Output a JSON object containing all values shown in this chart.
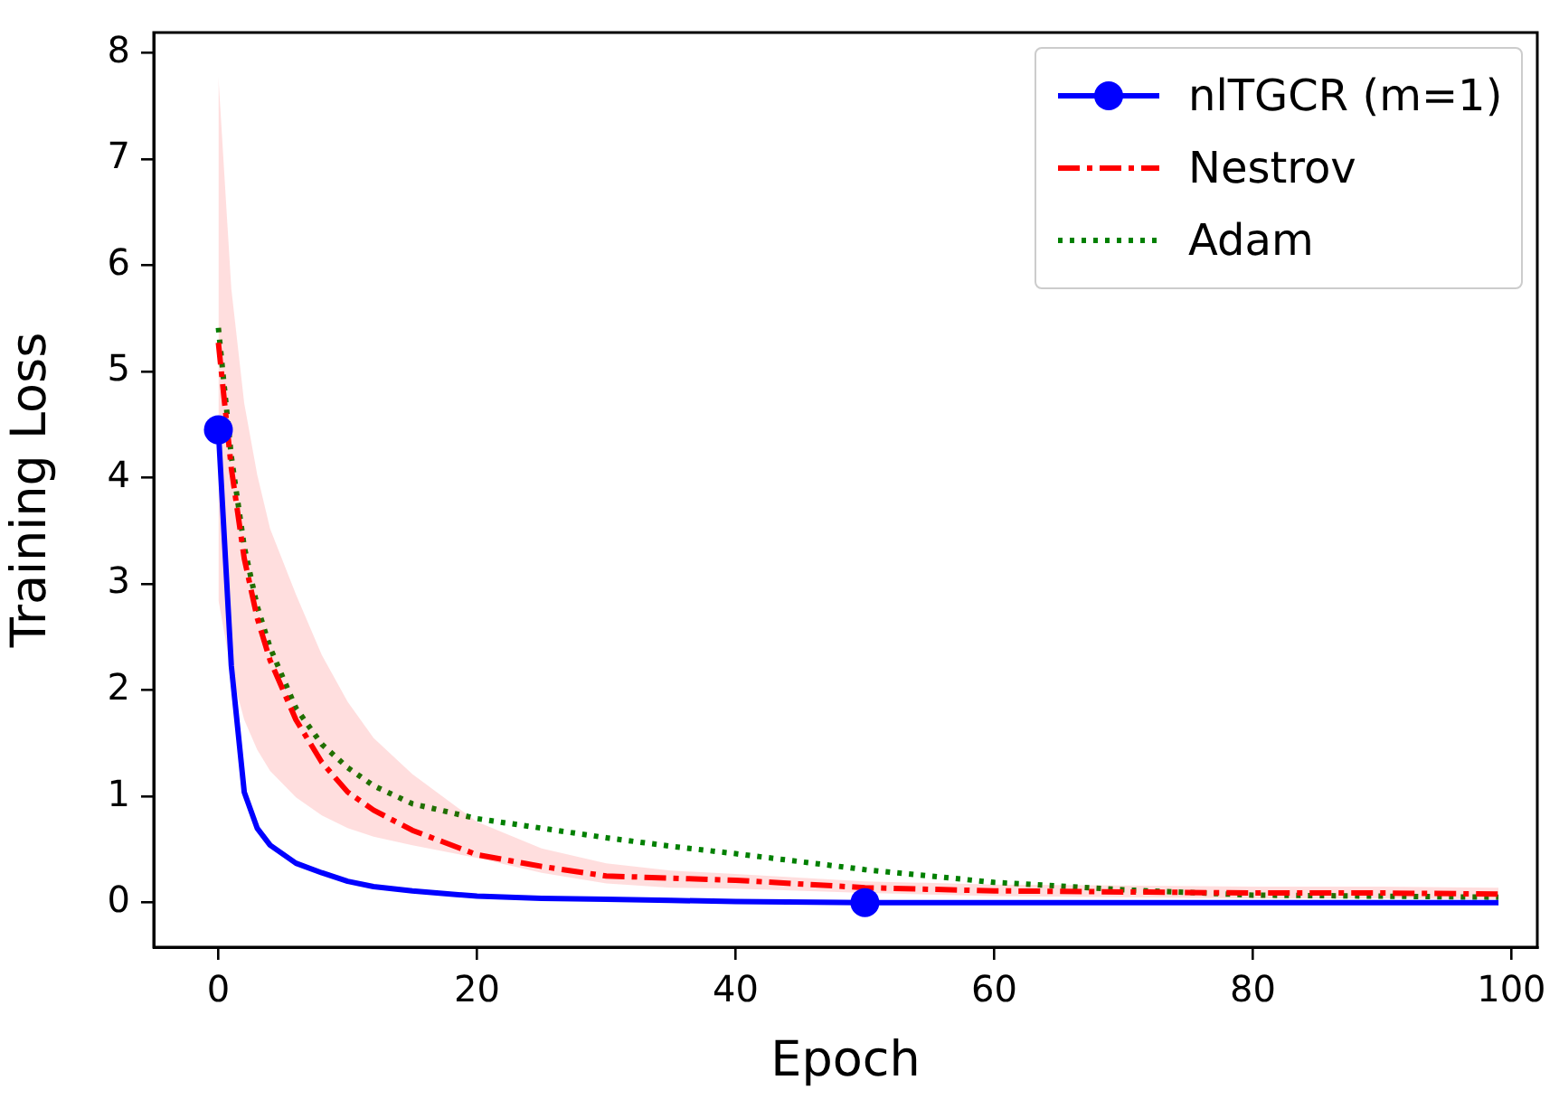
{
  "chart_data": {
    "type": "line",
    "xlabel": "Epoch",
    "ylabel": "Training Loss",
    "xlim": [
      -5,
      102
    ],
    "ylim": [
      -0.42,
      8.19
    ],
    "xticks": [
      0,
      20,
      40,
      60,
      80,
      100
    ],
    "yticks": [
      0,
      1,
      2,
      3,
      4,
      5,
      6,
      7,
      8
    ],
    "grid": false,
    "legend": "top right",
    "x": [
      0,
      1,
      2,
      3,
      4,
      6,
      8,
      10,
      12,
      15,
      20,
      25,
      30,
      35,
      40,
      50,
      60,
      70,
      80,
      90,
      99
    ],
    "series": [
      {
        "name": "nlTGCR (m=1)",
        "color": "#0000ff",
        "marker": "none",
        "line_style": "solid",
        "values": [
          4.45,
          2.23,
          1.04,
          0.7,
          0.54,
          0.37,
          0.28,
          0.2,
          0.15,
          0.11,
          0.06,
          0.04,
          0.03,
          0.02,
          0.01,
          0.0,
          0.0,
          0.0,
          0.0,
          0.0,
          0.0
        ]
      },
      {
        "type": "scatter",
        "color": "#0000ff",
        "marker": "circle",
        "x": [
          0,
          50
        ],
        "values": [
          4.45,
          0.0
        ]
      },
      {
        "name": "Nestrov",
        "color": "#ff0000",
        "marker": "none",
        "line_style": "dashdot",
        "values": [
          5.27,
          4.09,
          3.24,
          2.68,
          2.28,
          1.72,
          1.32,
          1.04,
          0.87,
          0.68,
          0.45,
          0.34,
          0.25,
          0.23,
          0.21,
          0.14,
          0.11,
          0.1,
          0.09,
          0.09,
          0.08
        ],
        "lower": [
          2.85,
          2.17,
          1.72,
          1.44,
          1.24,
          0.99,
          0.82,
          0.7,
          0.62,
          0.54,
          0.42,
          0.28,
          0.18,
          0.14,
          0.13,
          0.09,
          0.06,
          0.05,
          0.04,
          0.04,
          0.03
        ],
        "upper": [
          7.78,
          5.78,
          4.7,
          4.03,
          3.52,
          2.9,
          2.33,
          1.89,
          1.55,
          1.21,
          0.76,
          0.51,
          0.37,
          0.3,
          0.27,
          0.2,
          0.17,
          0.16,
          0.15,
          0.15,
          0.14
        ]
      },
      {
        "name": "Adam",
        "color": "#008000",
        "marker": "none",
        "line_style": "dotted",
        "values": [
          5.41,
          4.2,
          3.35,
          2.79,
          2.4,
          1.83,
          1.49,
          1.27,
          1.1,
          0.93,
          0.79,
          0.7,
          0.61,
          0.53,
          0.46,
          0.31,
          0.19,
          0.12,
          0.07,
          0.06,
          0.05
        ]
      }
    ]
  }
}
